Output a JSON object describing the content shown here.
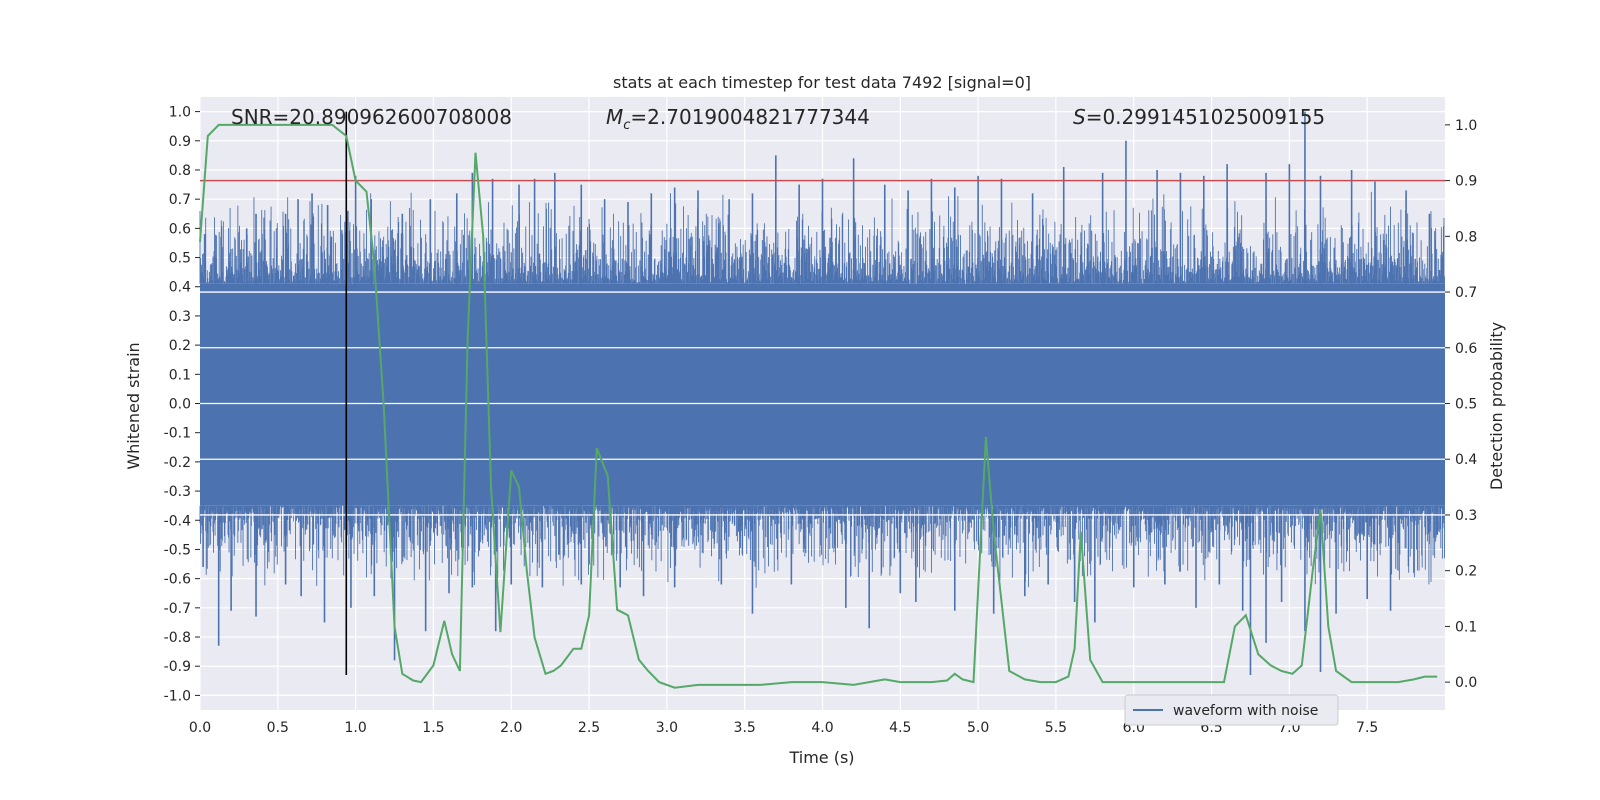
{
  "chart_data": {
    "type": "line",
    "title": "stats at each timestep for test data 7492 [signal=0]",
    "xlabel": "Time (s)",
    "ylabel_left": "Whitened strain",
    "ylabel_right": "Detection probability",
    "xlim": [
      0.0,
      8.0
    ],
    "ylim_left": [
      -1.05,
      1.05
    ],
    "ylim_right": [
      -0.05,
      1.05
    ],
    "xticks": [
      "0.0",
      "0.5",
      "1.0",
      "1.5",
      "2.0",
      "2.5",
      "3.0",
      "3.5",
      "4.0",
      "4.5",
      "5.0",
      "5.5",
      "6.0",
      "6.5",
      "7.0",
      "7.5"
    ],
    "yticks_left": [
      "1.0",
      "0.9",
      "0.8",
      "0.7",
      "0.6",
      "0.5",
      "0.4",
      "0.3",
      "0.2",
      "0.1",
      "0.0",
      "-0.1",
      "-0.2",
      "-0.3",
      "-0.4",
      "-0.5",
      "-0.6",
      "-0.7",
      "-0.8",
      "-0.9",
      "-1.0"
    ],
    "yticks_right": [
      "1.0",
      "0.9",
      "0.8",
      "0.7",
      "0.6",
      "0.5",
      "0.4",
      "0.3",
      "0.2",
      "0.1",
      "0.0"
    ],
    "grid": true,
    "legend": {
      "entries": [
        "waveform with noise"
      ],
      "placement": "bottom-right"
    },
    "annotations": {
      "snr": "SNR=20.890962600708008",
      "mc_symbol": "M",
      "mc_sub": "c",
      "mc_value": "=2.7019004821777344",
      "s_symbol": "S",
      "s_value": "=0.2991451025009155"
    },
    "threshold": {
      "axis": "right",
      "value": 0.9,
      "color": "#c44e52"
    },
    "marker_line": {
      "x": 0.94,
      "y_top_left": 1.0,
      "y_bottom_left": -0.93,
      "color": "#000000"
    },
    "waveform": {
      "name": "waveform with noise",
      "color": "#4c72b0",
      "axis": "left",
      "dense_band": [
        -0.35,
        0.41
      ],
      "spikes_up": [
        [
          0.03,
          0.58
        ],
        [
          0.1,
          0.5
        ],
        [
          0.3,
          0.6
        ],
        [
          0.36,
          0.65
        ],
        [
          0.55,
          0.65
        ],
        [
          0.63,
          0.7
        ],
        [
          0.72,
          0.72
        ],
        [
          0.82,
          0.68
        ],
        [
          0.95,
          0.66
        ],
        [
          1.0,
          0.78
        ],
        [
          1.1,
          0.7
        ],
        [
          1.3,
          0.65
        ],
        [
          1.48,
          0.7
        ],
        [
          1.65,
          0.72
        ],
        [
          1.75,
          0.79
        ],
        [
          1.88,
          0.77
        ],
        [
          2.05,
          0.75
        ],
        [
          2.15,
          0.77
        ],
        [
          2.28,
          0.79
        ],
        [
          2.45,
          0.75
        ],
        [
          2.6,
          0.7
        ],
        [
          2.75,
          0.69
        ],
        [
          2.9,
          0.72
        ],
        [
          3.05,
          0.74
        ],
        [
          3.2,
          0.73
        ],
        [
          3.4,
          0.7
        ],
        [
          3.55,
          0.72
        ],
        [
          3.7,
          0.85
        ],
        [
          3.85,
          0.75
        ],
        [
          4.0,
          0.77
        ],
        [
          4.2,
          0.84
        ],
        [
          4.4,
          0.75
        ],
        [
          4.55,
          0.73
        ],
        [
          4.7,
          0.77
        ],
        [
          4.85,
          0.74
        ],
        [
          5.0,
          0.78
        ],
        [
          5.15,
          0.77
        ],
        [
          5.35,
          0.72
        ],
        [
          5.55,
          0.81
        ],
        [
          5.8,
          0.79
        ],
        [
          5.95,
          0.9
        ],
        [
          6.15,
          0.8
        ],
        [
          6.3,
          0.79
        ],
        [
          6.45,
          0.78
        ],
        [
          6.6,
          0.82
        ],
        [
          6.85,
          0.79
        ],
        [
          7.0,
          0.82
        ],
        [
          7.1,
          1.0
        ],
        [
          7.2,
          0.78
        ],
        [
          7.4,
          0.8
        ],
        [
          7.55,
          0.76
        ],
        [
          7.75,
          0.73
        ],
        [
          7.9,
          0.65
        ]
      ],
      "spikes_down": [
        [
          0.02,
          -0.56
        ],
        [
          0.12,
          -0.83
        ],
        [
          0.2,
          -0.71
        ],
        [
          0.36,
          -0.73
        ],
        [
          0.55,
          -0.62
        ],
        [
          0.65,
          -0.66
        ],
        [
          0.8,
          -0.75
        ],
        [
          0.97,
          -0.7
        ],
        [
          1.12,
          -0.66
        ],
        [
          1.25,
          -0.88
        ],
        [
          1.45,
          -0.78
        ],
        [
          1.6,
          -0.65
        ],
        [
          1.75,
          -0.63
        ],
        [
          1.9,
          -0.78
        ],
        [
          2.0,
          -0.62
        ],
        [
          2.2,
          -0.63
        ],
        [
          2.45,
          -0.62
        ],
        [
          2.7,
          -0.63
        ],
        [
          2.85,
          -0.66
        ],
        [
          3.05,
          -0.63
        ],
        [
          3.35,
          -0.62
        ],
        [
          3.55,
          -0.72
        ],
        [
          3.8,
          -0.62
        ],
        [
          4.15,
          -0.7
        ],
        [
          4.3,
          -0.77
        ],
        [
          4.5,
          -0.65
        ],
        [
          4.6,
          -0.68
        ],
        [
          4.85,
          -0.71
        ],
        [
          5.1,
          -0.72
        ],
        [
          5.3,
          -0.66
        ],
        [
          5.45,
          -0.62
        ],
        [
          5.62,
          -0.68
        ],
        [
          5.75,
          -0.75
        ],
        [
          6.0,
          -0.63
        ],
        [
          6.2,
          -0.62
        ],
        [
          6.4,
          -0.7
        ],
        [
          6.55,
          -0.62
        ],
        [
          6.7,
          -0.71
        ],
        [
          6.75,
          -0.93
        ],
        [
          6.85,
          -0.82
        ],
        [
          6.95,
          -0.68
        ],
        [
          7.1,
          -0.78
        ],
        [
          7.2,
          -0.92
        ],
        [
          7.3,
          -0.72
        ],
        [
          7.5,
          -0.67
        ],
        [
          7.65,
          -0.71
        ],
        [
          7.8,
          -0.58
        ],
        [
          7.95,
          -0.45
        ]
      ]
    },
    "detection_probability": {
      "name": "detection probability",
      "color": "#55a868",
      "axis": "right",
      "x": [
        0.0,
        0.05,
        0.12,
        0.2,
        0.3,
        0.45,
        0.6,
        0.75,
        0.85,
        0.94,
        1.0,
        1.07,
        1.12,
        1.18,
        1.25,
        1.3,
        1.37,
        1.42,
        1.5,
        1.57,
        1.62,
        1.67,
        1.72,
        1.77,
        1.82,
        1.87,
        1.93,
        2.0,
        2.05,
        2.1,
        2.15,
        2.22,
        2.27,
        2.32,
        2.4,
        2.45,
        2.5,
        2.55,
        2.62,
        2.68,
        2.75,
        2.82,
        2.88,
        2.95,
        3.05,
        3.2,
        3.4,
        3.6,
        3.8,
        4.0,
        4.2,
        4.3,
        4.4,
        4.5,
        4.6,
        4.7,
        4.8,
        4.85,
        4.9,
        4.97,
        5.05,
        5.1,
        5.2,
        5.3,
        5.4,
        5.5,
        5.58,
        5.62,
        5.66,
        5.72,
        5.8,
        5.9,
        6.0,
        6.2,
        6.4,
        6.58,
        6.65,
        6.72,
        6.8,
        6.88,
        6.95,
        7.02,
        7.08,
        7.15,
        7.2,
        7.25,
        7.3,
        7.4,
        7.6,
        7.7,
        7.8,
        7.87,
        7.95
      ],
      "y": [
        0.79,
        0.98,
        1.0,
        1.0,
        1.0,
        1.0,
        1.0,
        1.0,
        1.0,
        0.98,
        0.9,
        0.88,
        0.75,
        0.5,
        0.1,
        0.015,
        0.003,
        0.0,
        0.03,
        0.11,
        0.05,
        0.02,
        0.62,
        0.95,
        0.8,
        0.35,
        0.09,
        0.38,
        0.35,
        0.2,
        0.08,
        0.015,
        0.02,
        0.03,
        0.06,
        0.06,
        0.12,
        0.42,
        0.37,
        0.13,
        0.12,
        0.04,
        0.02,
        0.0,
        -0.01,
        -0.005,
        -0.005,
        -0.005,
        0.0,
        0.0,
        -0.005,
        0.0,
        0.005,
        0.0,
        0.0,
        0.0,
        0.003,
        0.015,
        0.005,
        0.0,
        0.44,
        0.27,
        0.02,
        0.005,
        0.0,
        0.0,
        0.01,
        0.06,
        0.27,
        0.04,
        0.0,
        0.0,
        0.0,
        0.0,
        0.0,
        0.0,
        0.1,
        0.12,
        0.05,
        0.03,
        0.02,
        0.015,
        0.03,
        0.2,
        0.31,
        0.1,
        0.02,
        0.0,
        0.0,
        0.0,
        0.005,
        0.01,
        0.01
      ]
    }
  }
}
